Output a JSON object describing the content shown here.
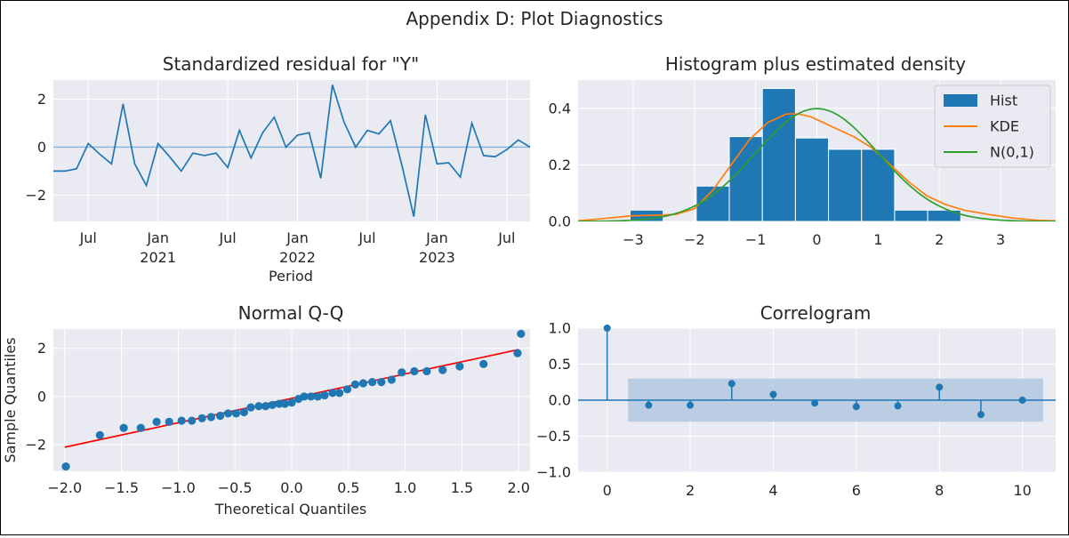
{
  "figure": {
    "suptitle": "Appendix D: Plot Diagnostics"
  },
  "colors": {
    "axes_bg": "#eaeaf2",
    "grid": "#ffffff",
    "blue": "#1f77b4",
    "orange": "#ff7f0e",
    "green": "#2ca02c",
    "red": "#ff0000",
    "band": "#b3c8e0",
    "text": "#262626"
  },
  "chart_data": [
    {
      "id": "residual",
      "type": "line",
      "title": "Standardized residual for \"Y\"",
      "xlabel": "Period",
      "ylabel": "",
      "x_start": "2020-04",
      "x_frequency": "monthly",
      "xlim": [
        "2020-04",
        "2023-09"
      ],
      "ylim": [
        -3.1,
        2.8
      ],
      "yticks": [
        -2,
        0,
        2
      ],
      "xticks": [
        {
          "month": "2020-07",
          "label": "Jul",
          "label2": ""
        },
        {
          "month": "2021-01",
          "label": "Jan",
          "label2": "2021"
        },
        {
          "month": "2021-07",
          "label": "Jul",
          "label2": ""
        },
        {
          "month": "2022-01",
          "label": "Jan",
          "label2": "2022"
        },
        {
          "month": "2022-07",
          "label": "Jul",
          "label2": ""
        },
        {
          "month": "2023-01",
          "label": "Jan",
          "label2": "2023"
        },
        {
          "month": "2023-07",
          "label": "Jul",
          "label2": ""
        }
      ],
      "hline": 0,
      "values": [
        -1.0,
        -1.0,
        -0.9,
        0.15,
        -0.3,
        -0.7,
        1.8,
        -0.7,
        -1.6,
        0.15,
        -0.4,
        -1.0,
        -0.25,
        -0.35,
        -0.25,
        -0.85,
        0.7,
        -0.45,
        0.6,
        1.25,
        0.0,
        0.5,
        0.6,
        -1.3,
        2.6,
        1.05,
        0.0,
        0.7,
        0.55,
        1.1,
        -0.8,
        -2.9,
        1.35,
        -0.7,
        -0.65,
        -1.25,
        1.0,
        -0.35,
        -0.4,
        -0.1,
        0.3,
        0.0,
        1.1
      ]
    },
    {
      "id": "histogram",
      "type": "bar",
      "title": "Histogram plus estimated density",
      "xlabel": "",
      "ylabel": "",
      "xlim": [
        -3.9,
        3.9
      ],
      "ylim": [
        0,
        0.5
      ],
      "xticks": [
        -3,
        -2,
        -1,
        0,
        1,
        2,
        3
      ],
      "xtick_labels": [
        "−3",
        "−2",
        "−1",
        "0",
        "1",
        "2",
        "3"
      ],
      "yticks": [
        0.0,
        0.2,
        0.4
      ],
      "ytick_labels": [
        "0.0",
        "0.2",
        "0.4"
      ],
      "bins": [
        {
          "x0": -3.05,
          "x1": -2.51,
          "value": 0.04
        },
        {
          "x0": -2.51,
          "x1": -1.97,
          "value": 0.0
        },
        {
          "x0": -1.97,
          "x1": -1.43,
          "value": 0.125
        },
        {
          "x0": -1.43,
          "x1": -0.89,
          "value": 0.3
        },
        {
          "x0": -0.89,
          "x1": -0.35,
          "value": 0.47
        },
        {
          "x0": -0.35,
          "x1": 0.19,
          "value": 0.295
        },
        {
          "x0": 0.19,
          "x1": 0.73,
          "value": 0.255
        },
        {
          "x0": 0.73,
          "x1": 1.27,
          "value": 0.255
        },
        {
          "x0": 1.27,
          "x1": 1.81,
          "value": 0.04
        },
        {
          "x0": 1.81,
          "x1": 2.35,
          "value": 0.04
        }
      ],
      "kde": {
        "x": [
          -3.9,
          -3.5,
          -3.0,
          -2.6,
          -2.3,
          -2.0,
          -1.7,
          -1.4,
          -1.1,
          -0.8,
          -0.5,
          -0.3,
          -0.1,
          0.1,
          0.3,
          0.6,
          0.9,
          1.2,
          1.5,
          1.8,
          2.1,
          2.4,
          2.8,
          3.2,
          3.6,
          3.9
        ],
        "y": [
          0.002,
          0.01,
          0.02,
          0.022,
          0.025,
          0.045,
          0.11,
          0.2,
          0.29,
          0.35,
          0.38,
          0.38,
          0.37,
          0.35,
          0.33,
          0.3,
          0.26,
          0.2,
          0.14,
          0.09,
          0.06,
          0.04,
          0.025,
          0.012,
          0.004,
          0.002
        ]
      },
      "normal_pdf": {
        "mean": 0,
        "sd": 1
      },
      "legend": {
        "placement": "upper-right",
        "entries": [
          "Hist",
          "KDE",
          "N(0,1)"
        ]
      }
    },
    {
      "id": "qq",
      "type": "scatter",
      "title": "Normal Q-Q",
      "xlabel": "Theoretical Quantiles",
      "ylabel": "Sample Quantiles",
      "xlim": [
        -2.1,
        2.1
      ],
      "ylim": [
        -3.1,
        2.8
      ],
      "xticks": [
        -2.0,
        -1.5,
        -1.0,
        -0.5,
        0.0,
        0.5,
        1.0,
        1.5,
        2.0
      ],
      "xtick_labels": [
        "−2.0",
        "−1.5",
        "−1.0",
        "−0.5",
        "0.0",
        "0.5",
        "1.0",
        "1.5",
        "2.0"
      ],
      "yticks": [
        -2,
        0,
        2
      ],
      "ytick_labels": [
        "−2",
        "0",
        "2"
      ],
      "x": [
        -1.99,
        -1.69,
        -1.48,
        -1.33,
        -1.19,
        -1.08,
        -0.97,
        -0.88,
        -0.79,
        -0.71,
        -0.63,
        -0.56,
        -0.49,
        -0.42,
        -0.36,
        -0.29,
        -0.23,
        -0.17,
        -0.11,
        -0.06,
        0.0,
        0.06,
        0.11,
        0.17,
        0.23,
        0.29,
        0.36,
        0.42,
        0.49,
        0.56,
        0.63,
        0.71,
        0.79,
        0.88,
        0.97,
        1.08,
        1.19,
        1.33,
        1.48,
        1.69,
        1.99
      ],
      "y": [
        -2.9,
        -1.6,
        -1.3,
        -1.3,
        -1.05,
        -1.05,
        -1.0,
        -1.0,
        -0.9,
        -0.85,
        -0.8,
        -0.7,
        -0.7,
        -0.65,
        -0.45,
        -0.4,
        -0.4,
        -0.35,
        -0.3,
        -0.3,
        -0.25,
        -0.1,
        0.0,
        0.0,
        0.0,
        0.05,
        0.15,
        0.15,
        0.3,
        0.5,
        0.55,
        0.6,
        0.6,
        0.7,
        1.0,
        1.05,
        1.05,
        1.1,
        1.25,
        1.35,
        1.8
      ],
      "y_extra_point": {
        "x": 2.02,
        "y": 2.6
      },
      "reference_line": {
        "x": [
          -2.0,
          2.0
        ],
        "y": [
          -2.1,
          1.95
        ]
      }
    },
    {
      "id": "correlogram",
      "type": "bar",
      "title": "Correlogram",
      "xlabel": "",
      "ylabel": "",
      "xlim": [
        -0.7,
        10.8
      ],
      "ylim": [
        -1.0,
        1.0
      ],
      "xticks": [
        0,
        2,
        4,
        6,
        8,
        10
      ],
      "xtick_labels": [
        "0",
        "2",
        "4",
        "6",
        "8",
        "10"
      ],
      "yticks": [
        -1.0,
        -0.5,
        0.0,
        0.5,
        1.0
      ],
      "ytick_labels": [
        "−1.0",
        "−0.5",
        "0.0",
        "0.5",
        "1.0"
      ],
      "lags": [
        0,
        1,
        2,
        3,
        4,
        5,
        6,
        7,
        8,
        9,
        10
      ],
      "values": [
        1.0,
        -0.07,
        -0.07,
        0.23,
        0.08,
        -0.04,
        -0.09,
        -0.08,
        0.18,
        -0.2,
        0.0
      ],
      "confidence_band": {
        "lower": -0.3,
        "upper": 0.3,
        "x_from": 0.5,
        "x_to": 10.5
      }
    }
  ]
}
